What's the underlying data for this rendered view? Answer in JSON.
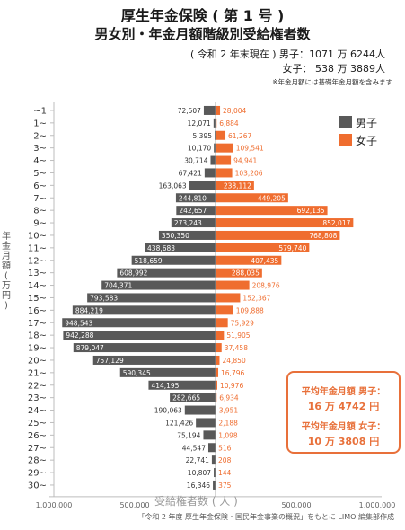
{
  "title": "厚生年金保険 ( 第 1 号 )",
  "subtitle": "男女別・年金月額階級別受給権者数",
  "totals": {
    "male_line": "( 令和 2 年末現在 ) 男子：1071 万 6244人",
    "female_line": "女子：  538 万 3889人"
  },
  "note": "※年金月額には基礎年金月額を含みます",
  "legend": {
    "male": "男子",
    "female": "女子"
  },
  "y_axis_label_chars": [
    "年",
    "金",
    "月",
    "額",
    "(",
    "万",
    "円",
    ")"
  ],
  "x_axis_title": "受給権者数 ( 人 )",
  "source": "「令和 2 年度 厚生年金保険・国民年金事業の概況」をもとに LIMO 編集部作成",
  "average_box": {
    "male_label": "平均年金月額  男子：",
    "male_value": "16 万 4742 円",
    "female_label": "平均年金月額  女子：",
    "female_value": "10 万 3808 円"
  },
  "colors": {
    "male": "#595959",
    "female": "#ef6d2f",
    "accent": "#e8703a"
  },
  "chart_data": {
    "type": "bar",
    "orientation": "horizontal-butterfly",
    "categories": [
      "~1",
      "1~",
      "2~",
      "3~",
      "4~",
      "5~",
      "6~",
      "7~",
      "8~",
      "9~",
      "10~",
      "11~",
      "12~",
      "13~",
      "14~",
      "15~",
      "16~",
      "17~",
      "18~",
      "19~",
      "20~",
      "21~",
      "22~",
      "23~",
      "24~",
      "25~",
      "26~",
      "27~",
      "28~",
      "29~",
      "30~"
    ],
    "series": [
      {
        "name": "男子",
        "values": [
          72507,
          12071,
          5395,
          10170,
          30714,
          67421,
          163063,
          244810,
          242657,
          273243,
          350350,
          438683,
          518659,
          608992,
          704371,
          793583,
          884219,
          948543,
          942288,
          879047,
          757129,
          590345,
          414195,
          282665,
          190063,
          121426,
          75194,
          44547,
          22741,
          10807,
          16346
        ]
      },
      {
        "name": "女子",
        "values": [
          28004,
          6884,
          61267,
          109541,
          94941,
          103206,
          238112,
          449205,
          692135,
          852017,
          768808,
          579740,
          407435,
          288035,
          208976,
          152367,
          109888,
          75929,
          51905,
          37458,
          24850,
          16796,
          10976,
          6934,
          3951,
          2188,
          1098,
          516,
          208,
          144,
          375
        ]
      }
    ],
    "value_labels": {
      "male": [
        "72,507",
        "12,071",
        "5,395",
        "10,170",
        "30,714",
        "67,421",
        "163,063",
        "244,810",
        "242,657",
        "273,243",
        "350,350",
        "438,683",
        "518,659",
        "608,992",
        "704,371",
        "793,583",
        "884,219",
        "948,543",
        "942,288",
        "879,047",
        "757,129",
        "590,345",
        "414,195",
        "282,665",
        "190,063",
        "121,426",
        "75,194",
        "44,547",
        "22,741",
        "10,807",
        "16,346"
      ],
      "female": [
        "28,004",
        "6,884",
        "61,267",
        "109,541",
        "94,941",
        "103,206",
        "238,112",
        "449,205",
        "692,135",
        "852,017",
        "768,808",
        "579,740",
        "407,435",
        "288,035",
        "208,976",
        "152,367",
        "109,888",
        "75,929",
        "51,905",
        "37,458",
        "24,850",
        "16,796",
        "10,976",
        "6,934",
        "3,951",
        "2,188",
        "1,098",
        "516",
        "208",
        "144",
        "375"
      ]
    },
    "xticks": [
      -1000000,
      -500000,
      0,
      500000,
      1000000
    ],
    "xtick_labels": [
      "1,000,000",
      "500,000",
      "",
      "500,000",
      "1,000,000"
    ],
    "xlim": [
      -1000000,
      1000000
    ],
    "xlabel": "受給権者数 ( 人 )",
    "ylabel": "年金月額 ( 万円 )",
    "legend_position": "top-right",
    "grid": false
  }
}
